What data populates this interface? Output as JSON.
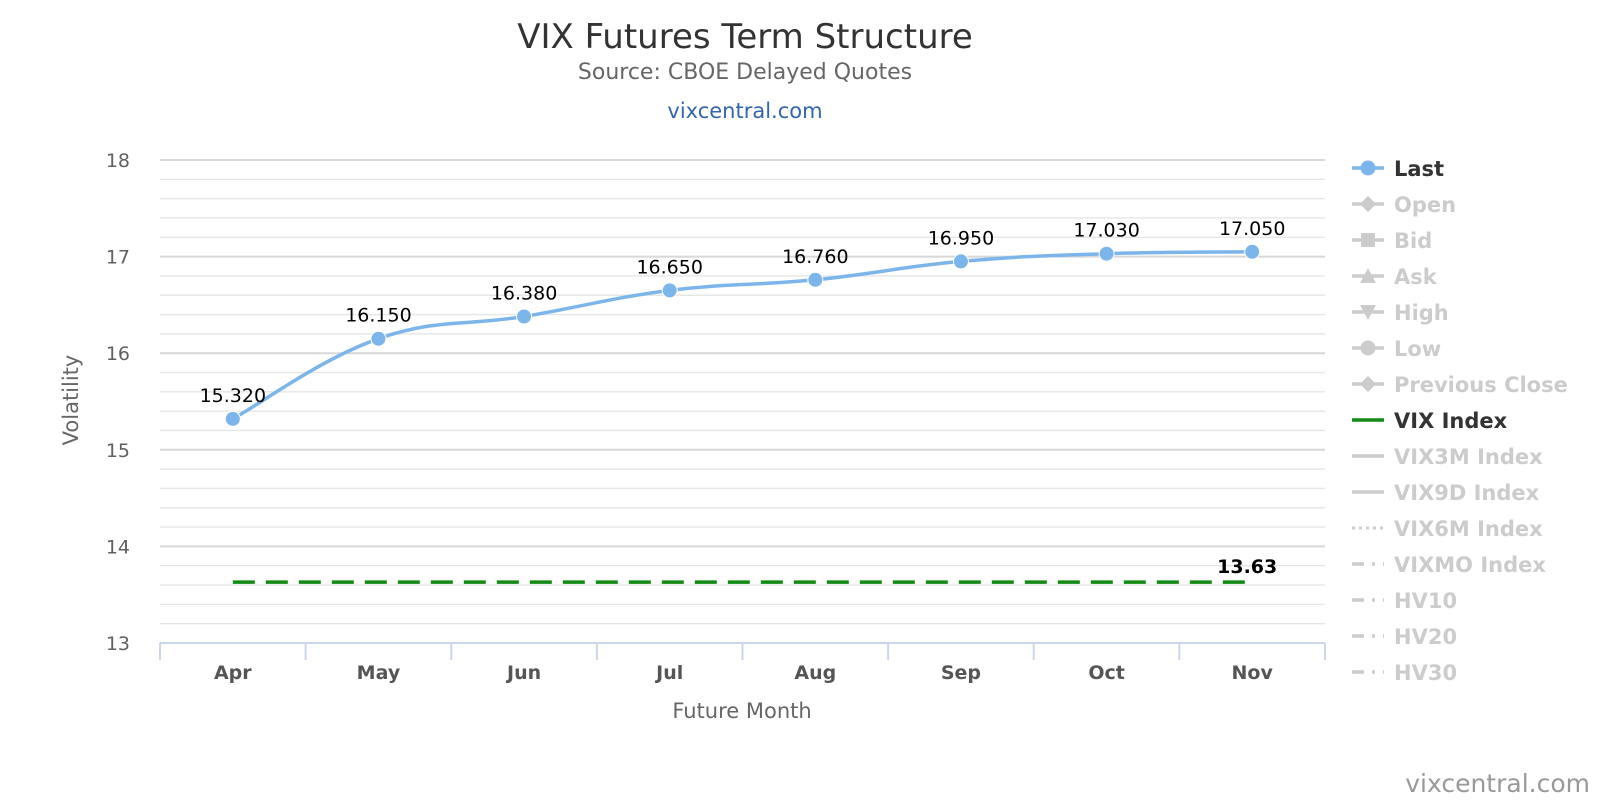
{
  "chart_data": {
    "type": "line",
    "title": "VIX Futures Term Structure",
    "subtitle": "Source: CBOE Delayed Quotes",
    "site_link": "vixcentral.com",
    "credit": "vixcentral.com",
    "xlabel": "Future Month",
    "ylabel": "Volatility",
    "ylim": [
      13,
      18
    ],
    "yticks": [
      13,
      14,
      15,
      16,
      17,
      18
    ],
    "grid": true,
    "legend_position": "right",
    "categories": [
      "Apr",
      "May",
      "Jun",
      "Jul",
      "Aug",
      "Sep",
      "Oct",
      "Nov"
    ],
    "series": [
      {
        "name": "Last",
        "color": "#7cb5ec",
        "values": [
          15.32,
          16.15,
          16.38,
          16.65,
          16.76,
          16.95,
          17.03,
          17.05
        ],
        "labels": [
          "15.320",
          "16.150",
          "16.380",
          "16.650",
          "16.760",
          "16.950",
          "17.030",
          "17.050"
        ]
      },
      {
        "name": "VIX Index",
        "color": "#138a13",
        "style": "dashed",
        "values": [
          13.63,
          13.63,
          13.63,
          13.63,
          13.63,
          13.63,
          13.63,
          13.63
        ],
        "end_label": "13.63"
      }
    ],
    "legend": [
      {
        "name": "Last",
        "symbol": "circle-line",
        "active": true
      },
      {
        "name": "Open",
        "symbol": "diamond",
        "active": false
      },
      {
        "name": "Bid",
        "symbol": "square",
        "active": false
      },
      {
        "name": "Ask",
        "symbol": "triangle",
        "active": false
      },
      {
        "name": "High",
        "symbol": "triangle-down",
        "active": false
      },
      {
        "name": "Low",
        "symbol": "circle",
        "active": false
      },
      {
        "name": "Previous Close",
        "symbol": "diamond",
        "active": false
      },
      {
        "name": "VIX Index",
        "symbol": "line",
        "active": true
      },
      {
        "name": "VIX3M Index",
        "symbol": "line",
        "active": false
      },
      {
        "name": "VIX9D Index",
        "symbol": "line",
        "active": false
      },
      {
        "name": "VIX6M Index",
        "symbol": "dotted",
        "active": false
      },
      {
        "name": "VIXMO Index",
        "symbol": "dashdot",
        "active": false
      },
      {
        "name": "HV10",
        "symbol": "dashdot",
        "active": false
      },
      {
        "name": "HV20",
        "symbol": "dashdot",
        "active": false
      },
      {
        "name": "HV30",
        "symbol": "dashdot",
        "active": false
      }
    ]
  }
}
